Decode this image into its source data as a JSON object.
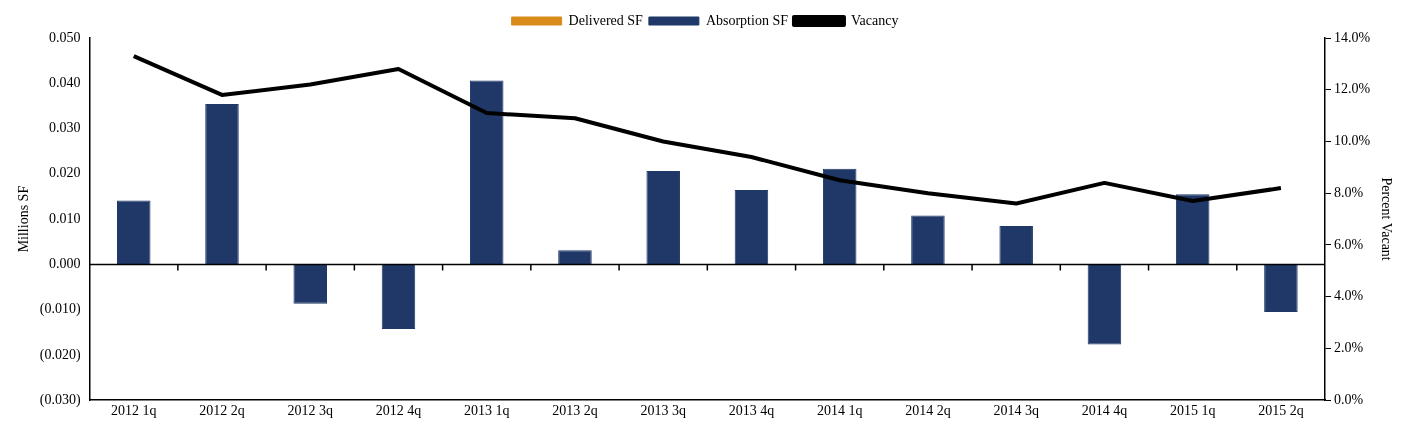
{
  "chart_data": {
    "type": "bar",
    "categories": [
      "2012 1q",
      "2012 2q",
      "2012 3q",
      "2012 4q",
      "2013 1q",
      "2013 2q",
      "2013 3q",
      "2013 4q",
      "2014 1q",
      "2014 2q",
      "2014 3q",
      "2014 4q",
      "2015 1q",
      "2015 2q"
    ],
    "series": [
      {
        "name": "Delivered SF",
        "color": "#d98b1a",
        "values": [
          0,
          0,
          0,
          0,
          0,
          0,
          0,
          0,
          0,
          0,
          0,
          0,
          0,
          0
        ]
      },
      {
        "name": "Absorption SF",
        "color": "#1f3868",
        "values": [
          0.0141,
          0.0354,
          -0.0087,
          -0.0143,
          0.0406,
          0.0031,
          0.0206,
          0.0164,
          0.0211,
          0.0108,
          0.0085,
          -0.0177,
          0.0155,
          -0.0105
        ]
      },
      {
        "name": "Vacancy",
        "type": "line",
        "axis": "y2",
        "color": "#000000",
        "values": [
          13.3,
          11.8,
          12.2,
          12.8,
          11.1,
          10.9,
          10.0,
          9.4,
          8.5,
          8.0,
          7.6,
          8.4,
          7.7,
          8.2
        ]
      }
    ],
    "ylabel": "Millions SF",
    "y2label": "Percent Vacant",
    "ylim": [
      -0.03,
      0.05
    ],
    "yticks": [
      {
        "value": -0.03,
        "label": "(0.030)"
      },
      {
        "value": -0.02,
        "label": "(0.020)"
      },
      {
        "value": -0.01,
        "label": "(0.010)"
      },
      {
        "value": 0,
        "label": "0.000"
      },
      {
        "value": 0.01,
        "label": "0.010"
      },
      {
        "value": 0.02,
        "label": "0.020"
      },
      {
        "value": 0.03,
        "label": "0.030"
      },
      {
        "value": 0.04,
        "label": "0.040"
      },
      {
        "value": 0.05,
        "label": "0.050"
      }
    ],
    "y2lim": [
      0,
      14
    ],
    "y2ticks": [
      {
        "value": 0,
        "label": "0.0%"
      },
      {
        "value": 2,
        "label": "2.0%"
      },
      {
        "value": 4,
        "label": "4.0%"
      },
      {
        "value": 6,
        "label": "6.0%"
      },
      {
        "value": 8,
        "label": "8.0%"
      },
      {
        "value": 10,
        "label": "10.0%"
      },
      {
        "value": 12,
        "label": "12.0%"
      },
      {
        "value": 14,
        "label": "14.0%"
      }
    ],
    "ref_lines": [
      {
        "axis": "y",
        "value": 0,
        "color": "#000000"
      }
    ],
    "grid": false,
    "legend": "top",
    "marker": "none",
    "line_style": "solid"
  }
}
